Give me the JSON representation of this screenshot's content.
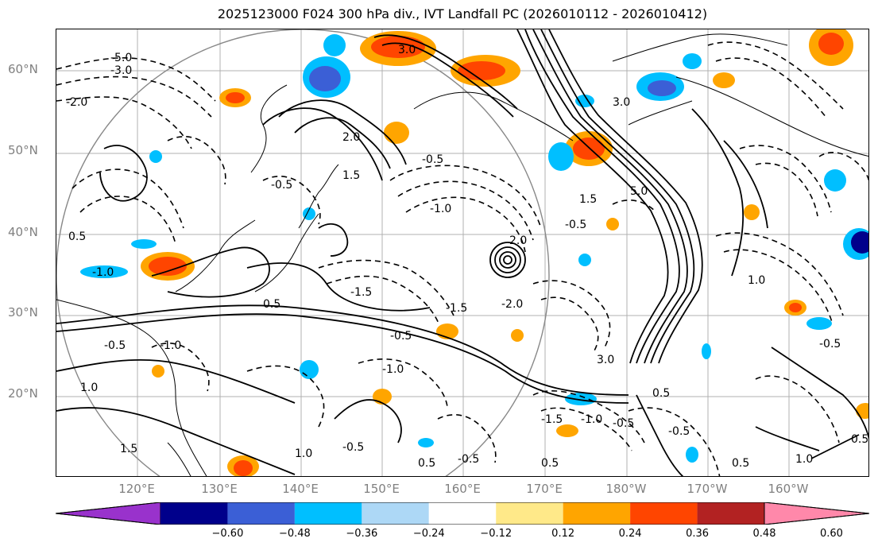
{
  "title": "2025123000 F024 300 hPa div., IVT Landfall PC (2026010112 - 2026010412)",
  "lat_labels": [
    "20°N",
    "30°N",
    "40°N",
    "50°N",
    "60°N"
  ],
  "lon_labels": [
    "120°E",
    "130°E",
    "140°E",
    "150°E",
    "160°E",
    "170°E",
    "180°W",
    "170°W",
    "160°W"
  ],
  "colorbar": {
    "labels": [
      "−0.60",
      "−0.48",
      "−0.36",
      "−0.24",
      "−0.12",
      "0.12",
      "0.24",
      "0.36",
      "0.48",
      "0.60"
    ],
    "colors": [
      "#9932cc",
      "#00008b",
      "#3b5fd6",
      "#00bfff",
      "#add8f6",
      "#ffffff",
      "#ffe989",
      "#ffa500",
      "#ff4500",
      "#b22222",
      "#ff88aa"
    ]
  },
  "contour_labels": [
    "-5.0",
    "-3.0",
    "-2.0",
    "-1.5",
    "-1.0",
    "-0.5",
    "0.5",
    "1.0",
    "1.5",
    "2.0",
    "3.0",
    "5.0"
  ]
}
